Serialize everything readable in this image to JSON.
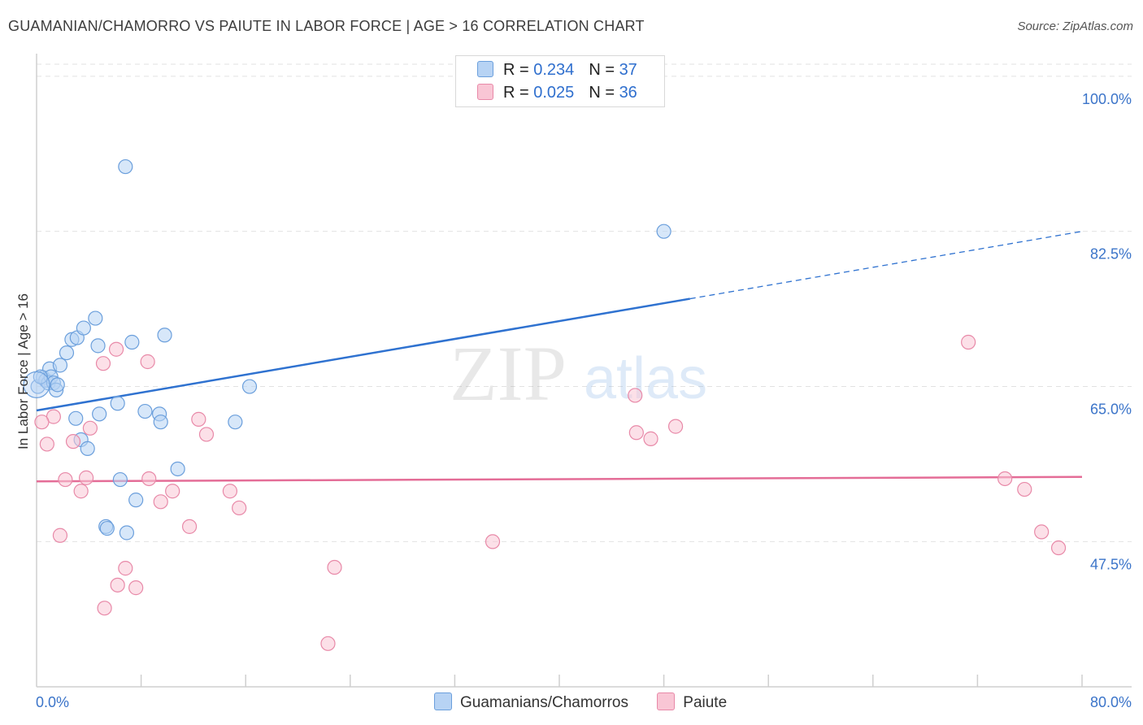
{
  "header": {
    "title": "GUAMANIAN/CHAMORRO VS PAIUTE IN LABOR FORCE | AGE > 16 CORRELATION CHART",
    "source": "Source: ZipAtlas.com"
  },
  "legend": {
    "rows": [
      {
        "r_label": "R = ",
        "r_value": "0.234",
        "n_label": "N = ",
        "n_value": "37"
      },
      {
        "r_label": "R = ",
        "r_value": "0.025",
        "n_label": "N = ",
        "n_value": "36"
      }
    ]
  },
  "bottom_legend": {
    "items": [
      {
        "label": "Guamanians/Chamorros"
      },
      {
        "label": "Paiute"
      }
    ]
  },
  "colors": {
    "blue_fill": "#b7d3f4",
    "blue_stroke": "#6b9fdc",
    "blue_line": "#2f72d0",
    "pink_fill": "#f9c6d5",
    "pink_stroke": "#e889a8",
    "pink_line": "#e46d97",
    "tick_text": "#3b74c9",
    "grid": "#e2e2e2"
  },
  "watermark": {
    "zip": "ZIP",
    "atlas": "atlas"
  },
  "chart_data": {
    "type": "scatter",
    "title": "GUAMANIAN/CHAMORRO VS PAIUTE IN LABOR FORCE | AGE > 16 CORRELATION CHART",
    "xlabel": "",
    "ylabel": "In Labor Force | Age > 16",
    "xlim": [
      0,
      80
    ],
    "ylim": [
      32.5,
      102
    ],
    "x_tick_labels": [
      "0.0%",
      "80.0%"
    ],
    "y_ticks": [
      47.5,
      65.0,
      82.5,
      100.0
    ],
    "y_tick_labels": [
      "47.5%",
      "65.0%",
      "82.5%",
      "100.0%"
    ],
    "grid": true,
    "legend_position": "top-center",
    "series": [
      {
        "name": "Guamanians/Chamorros",
        "r": 0.234,
        "n": 37,
        "points": [
          [
            0.1,
            65.0
          ],
          [
            0.5,
            66.0
          ],
          [
            0.7,
            65.7
          ],
          [
            0.9,
            65.4
          ],
          [
            1.0,
            67.0
          ],
          [
            1.1,
            66.1
          ],
          [
            1.3,
            65.4
          ],
          [
            1.5,
            64.6
          ],
          [
            1.8,
            67.4
          ],
          [
            2.3,
            68.8
          ],
          [
            2.7,
            70.3
          ],
          [
            3.1,
            70.5
          ],
          [
            3.0,
            61.4
          ],
          [
            3.6,
            71.6
          ],
          [
            3.4,
            59.0
          ],
          [
            3.9,
            58.0
          ],
          [
            4.5,
            72.7
          ],
          [
            4.7,
            69.6
          ],
          [
            4.8,
            61.9
          ],
          [
            5.3,
            49.2
          ],
          [
            5.4,
            49.0
          ],
          [
            6.2,
            63.1
          ],
          [
            6.4,
            54.5
          ],
          [
            6.8,
            89.8
          ],
          [
            6.9,
            48.5
          ],
          [
            7.3,
            70.0
          ],
          [
            7.6,
            52.2
          ],
          [
            8.3,
            62.2
          ],
          [
            9.4,
            61.9
          ],
          [
            9.5,
            61.0
          ],
          [
            9.8,
            70.8
          ],
          [
            10.8,
            55.7
          ],
          [
            15.2,
            61.0
          ],
          [
            16.3,
            65.0
          ],
          [
            48.0,
            82.5
          ],
          [
            0.3,
            66.1
          ],
          [
            1.6,
            65.2
          ]
        ]
      },
      {
        "name": "Paiute",
        "r": 0.025,
        "n": 36,
        "points": [
          [
            0.8,
            58.5
          ],
          [
            1.3,
            61.6
          ],
          [
            1.8,
            48.2
          ],
          [
            2.2,
            54.5
          ],
          [
            2.8,
            58.8
          ],
          [
            3.4,
            53.2
          ],
          [
            3.8,
            54.7
          ],
          [
            4.1,
            60.3
          ],
          [
            5.1,
            67.6
          ],
          [
            5.2,
            40.0
          ],
          [
            6.1,
            69.2
          ],
          [
            6.2,
            42.6
          ],
          [
            6.8,
            44.5
          ],
          [
            7.6,
            42.3
          ],
          [
            8.5,
            67.8
          ],
          [
            8.6,
            54.6
          ],
          [
            9.5,
            52.0
          ],
          [
            10.4,
            53.2
          ],
          [
            11.7,
            49.2
          ],
          [
            12.4,
            61.3
          ],
          [
            13.0,
            59.6
          ],
          [
            14.8,
            53.2
          ],
          [
            15.5,
            51.3
          ],
          [
            22.3,
            36.0
          ],
          [
            22.8,
            44.6
          ],
          [
            34.9,
            47.5
          ],
          [
            45.8,
            64.0
          ],
          [
            45.9,
            59.8
          ],
          [
            47.0,
            59.1
          ],
          [
            48.9,
            60.5
          ],
          [
            71.3,
            70.0
          ],
          [
            74.1,
            54.6
          ],
          [
            75.6,
            53.4
          ],
          [
            76.9,
            48.6
          ],
          [
            78.2,
            46.8
          ],
          [
            0.4,
            61.0
          ]
        ]
      }
    ],
    "trend_lines": [
      {
        "series": "Guamanians/Chamorros",
        "solid_from": [
          0,
          62.3
        ],
        "solid_to": [
          50,
          74.9
        ],
        "dashed_to": [
          80,
          82.5
        ]
      },
      {
        "series": "Paiute",
        "from": [
          0,
          54.3
        ],
        "to": [
          80,
          54.8
        ]
      }
    ]
  }
}
